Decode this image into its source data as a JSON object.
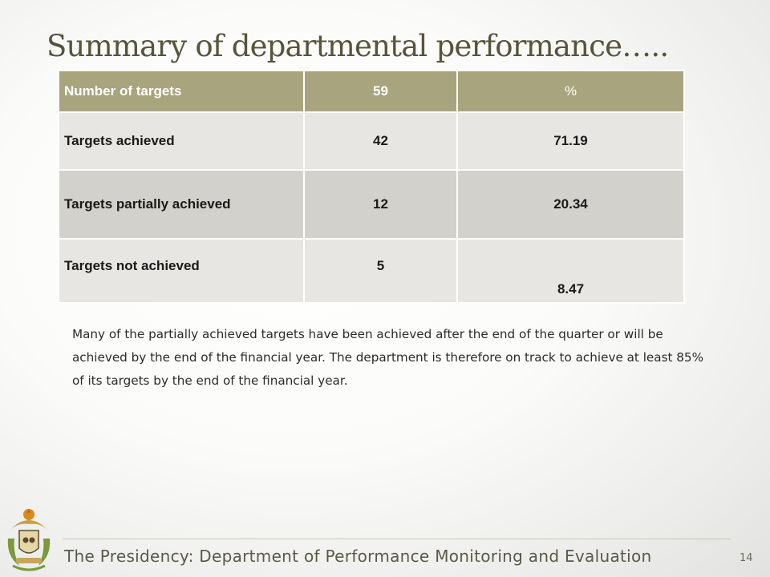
{
  "slide": {
    "title": "Summary of departmental  performance…..",
    "page_number": "14",
    "footer": "The Presidency: Department of Performance Monitoring and Evaluation"
  },
  "table": {
    "header": {
      "label": "Number of targets",
      "count": "59",
      "percent": "%"
    },
    "rows": [
      {
        "label": "Targets achieved",
        "count": "42",
        "percent": "71.19"
      },
      {
        "label": "Targets partially achieved",
        "count": "12",
        "percent": "20.34"
      },
      {
        "label": "Targets not achieved",
        "count": "5",
        "percent": "8.47"
      }
    ]
  },
  "note": "Many of the partially achieved targets have been achieved after the end of the quarter or will be achieved by the end of the financial year. The department is therefore on track to achieve at least 85% of its targets by the end of the financial year.",
  "colors": {
    "header_fill": "#a8a47e",
    "row_light": "#e7e6e3",
    "row_dark": "#d2d1cb",
    "title_text": "#57543c"
  },
  "icons": [
    "coat-of-arms-emblem"
  ]
}
